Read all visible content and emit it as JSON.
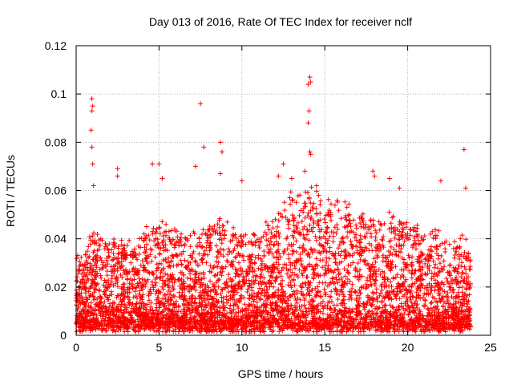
{
  "chart_data": {
    "type": "scatter",
    "title": "Day 013 of 2016, Rate Of TEC Index for receiver nclf",
    "xlabel": "GPS time / hours",
    "ylabel": "ROTI / TECUs",
    "xlim": [
      0,
      25
    ],
    "ylim": [
      0,
      0.12
    ],
    "grid": true,
    "marker": "+",
    "series_color": "#ff0000",
    "x_ticks": [
      0,
      5,
      10,
      15,
      20,
      25
    ],
    "x_tick_labels": [
      "0",
      "5",
      "10",
      "15",
      "20",
      "25"
    ],
    "y_ticks": [
      0,
      0.02,
      0.04,
      0.06,
      0.08,
      0.1,
      0.12
    ],
    "y_tick_labels": [
      "0",
      "0.02",
      "0.04",
      "0.06",
      "0.08",
      "0.1",
      "0.12"
    ],
    "envelope": {
      "note": "approximate upper envelope of the dense scatter (hour, ROTI)",
      "x": [
        0,
        0.5,
        1,
        1.5,
        2,
        2.5,
        3,
        3.5,
        4,
        4.5,
        5,
        5.5,
        6,
        6.5,
        7,
        7.5,
        8,
        8.5,
        9,
        9.5,
        10,
        10.5,
        11,
        11.5,
        12,
        12.5,
        13,
        13.5,
        14,
        14.5,
        15,
        15.5,
        16,
        16.5,
        17,
        17.5,
        18,
        18.5,
        19,
        19.5,
        20,
        20.5,
        21,
        21.5,
        22,
        22.5,
        23,
        23.5,
        23.8
      ],
      "top": [
        0.035,
        0.032,
        0.045,
        0.04,
        0.038,
        0.042,
        0.04,
        0.036,
        0.042,
        0.045,
        0.048,
        0.046,
        0.044,
        0.04,
        0.042,
        0.045,
        0.044,
        0.05,
        0.046,
        0.044,
        0.042,
        0.044,
        0.042,
        0.046,
        0.048,
        0.055,
        0.058,
        0.06,
        0.062,
        0.06,
        0.058,
        0.056,
        0.055,
        0.054,
        0.05,
        0.05,
        0.048,
        0.05,
        0.05,
        0.048,
        0.046,
        0.045,
        0.045,
        0.044,
        0.042,
        0.04,
        0.04,
        0.042,
        0.03
      ]
    },
    "outliers": [
      {
        "x": 0.95,
        "y": 0.098
      },
      {
        "x": 1.0,
        "y": 0.095
      },
      {
        "x": 0.95,
        "y": 0.093
      },
      {
        "x": 0.9,
        "y": 0.085
      },
      {
        "x": 0.95,
        "y": 0.078
      },
      {
        "x": 1.0,
        "y": 0.071
      },
      {
        "x": 1.05,
        "y": 0.062
      },
      {
        "x": 2.5,
        "y": 0.066
      },
      {
        "x": 2.5,
        "y": 0.069
      },
      {
        "x": 4.6,
        "y": 0.071
      },
      {
        "x": 5.0,
        "y": 0.071
      },
      {
        "x": 5.2,
        "y": 0.065
      },
      {
        "x": 7.2,
        "y": 0.07
      },
      {
        "x": 7.5,
        "y": 0.096
      },
      {
        "x": 7.7,
        "y": 0.078
      },
      {
        "x": 8.7,
        "y": 0.08
      },
      {
        "x": 8.8,
        "y": 0.076
      },
      {
        "x": 8.7,
        "y": 0.067
      },
      {
        "x": 10.0,
        "y": 0.064
      },
      {
        "x": 12.2,
        "y": 0.066
      },
      {
        "x": 12.5,
        "y": 0.071
      },
      {
        "x": 13.0,
        "y": 0.065
      },
      {
        "x": 13.8,
        "y": 0.068
      },
      {
        "x": 14.1,
        "y": 0.107
      },
      {
        "x": 14.15,
        "y": 0.105
      },
      {
        "x": 14.0,
        "y": 0.104
      },
      {
        "x": 14.05,
        "y": 0.093
      },
      {
        "x": 14.0,
        "y": 0.088
      },
      {
        "x": 14.1,
        "y": 0.076
      },
      {
        "x": 14.15,
        "y": 0.075
      },
      {
        "x": 14.5,
        "y": 0.062
      },
      {
        "x": 17.9,
        "y": 0.068
      },
      {
        "x": 18.0,
        "y": 0.066
      },
      {
        "x": 18.9,
        "y": 0.065
      },
      {
        "x": 19.5,
        "y": 0.061
      },
      {
        "x": 22.0,
        "y": 0.064
      },
      {
        "x": 23.4,
        "y": 0.077
      },
      {
        "x": 23.5,
        "y": 0.061
      }
    ]
  }
}
